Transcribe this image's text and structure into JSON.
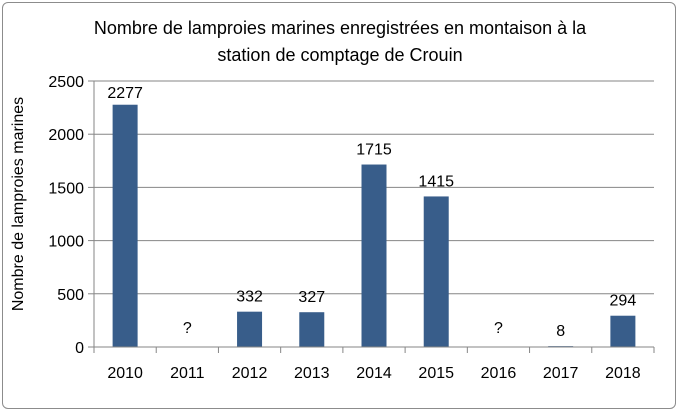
{
  "chart_data": {
    "type": "bar",
    "title_line1": "Nombre de lamproies marines enregistrées en montaison à la",
    "title_line2": "station de comptage de Crouin",
    "ylabel": "Nombre de lamproies marines",
    "xlabel": "",
    "categories": [
      "2010",
      "2011",
      "2012",
      "2013",
      "2014",
      "2015",
      "2016",
      "2017",
      "2018"
    ],
    "values": [
      2277,
      null,
      332,
      327,
      1715,
      1415,
      null,
      8,
      294
    ],
    "data_labels": [
      "2277",
      "?",
      "332",
      "327",
      "1715",
      "1415",
      "?",
      "8",
      "294"
    ],
    "ylim": [
      0,
      2500
    ],
    "yticks": [
      0,
      500,
      1000,
      1500,
      2000,
      2500
    ],
    "grid": true,
    "legend": "none",
    "bar_color": "#385d8a",
    "grid_color": "#868686"
  }
}
